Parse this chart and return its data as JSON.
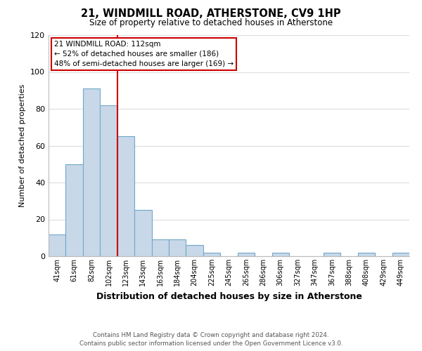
{
  "title": "21, WINDMILL ROAD, ATHERSTONE, CV9 1HP",
  "subtitle": "Size of property relative to detached houses in Atherstone",
  "xlabel": "Distribution of detached houses by size in Atherstone",
  "ylabel": "Number of detached properties",
  "bin_labels": [
    "41sqm",
    "61sqm",
    "82sqm",
    "102sqm",
    "123sqm",
    "143sqm",
    "163sqm",
    "184sqm",
    "204sqm",
    "225sqm",
    "245sqm",
    "265sqm",
    "286sqm",
    "306sqm",
    "327sqm",
    "347sqm",
    "367sqm",
    "388sqm",
    "408sqm",
    "429sqm",
    "449sqm"
  ],
  "bar_heights": [
    12,
    50,
    91,
    82,
    65,
    25,
    9,
    9,
    6,
    2,
    0,
    2,
    0,
    2,
    0,
    0,
    2,
    0,
    2,
    0,
    2
  ],
  "bar_color": "#c8d8e8",
  "bar_edge_color": "#6fa8c8",
  "vline_index": 3,
  "vline_color": "#cc0000",
  "ylim": [
    0,
    120
  ],
  "yticks": [
    0,
    20,
    40,
    60,
    80,
    100,
    120
  ],
  "annotation_title": "21 WINDMILL ROAD: 112sqm",
  "annotation_line1": "← 52% of detached houses are smaller (186)",
  "annotation_line2": "48% of semi-detached houses are larger (169) →",
  "annotation_box_color": "#ffffff",
  "annotation_box_edge": "#cc0000",
  "footer_line1": "Contains HM Land Registry data © Crown copyright and database right 2024.",
  "footer_line2": "Contains public sector information licensed under the Open Government Licence v3.0.",
  "background_color": "#ffffff",
  "grid_color": "#dddddd"
}
